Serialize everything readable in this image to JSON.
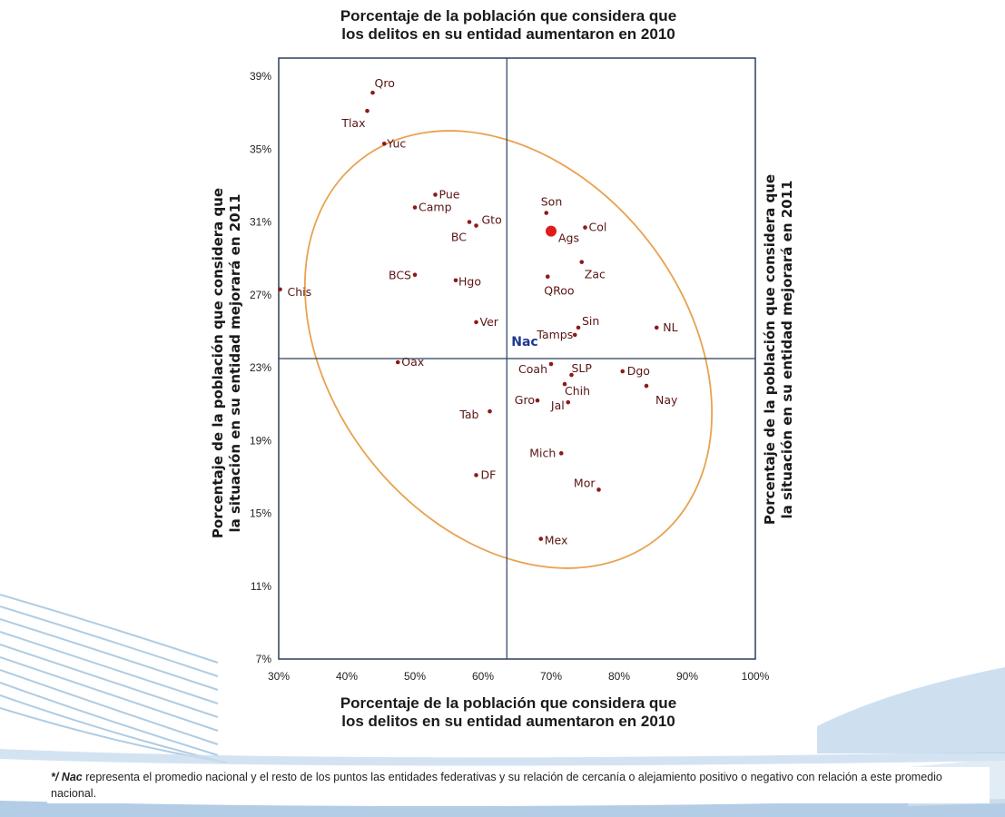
{
  "chart_data": {
    "type": "scatter",
    "title": "Porcentaje de la población que considera que los delitos en su entidad aumentaron en 2010",
    "title_lines": [
      "Porcentaje de la población que considera que",
      "los delitos en su entidad aumentaron  en 2010"
    ],
    "xlabel_lines": [
      "Porcentaje de la población que considera que",
      "los delitos en su entidad aumentaron  en 2010"
    ],
    "ylabel_lines": [
      "Porcentaje de la población que considera que",
      "la situación en su entidad mejorará en 2011"
    ],
    "xlim": [
      30,
      100
    ],
    "ylim": [
      7,
      40
    ],
    "x_ticks": [
      30,
      40,
      50,
      60,
      70,
      80,
      90,
      100
    ],
    "x_tick_labels": [
      "30%",
      "40%",
      "50%",
      "60%",
      "70%",
      "80%",
      "90%",
      "100%"
    ],
    "y_ticks": [
      7,
      11,
      15,
      19,
      23,
      27,
      31,
      35,
      39
    ],
    "y_tick_labels": [
      "7%",
      "11%",
      "15%",
      "19%",
      "23%",
      "27%",
      "31%",
      "35%",
      "39%"
    ],
    "reference_lines": {
      "x": 63.5,
      "y": 23.5
    },
    "grid": false,
    "colors": {
      "point": "#8b1a1a",
      "highlight": "#e21b1b",
      "nac": "#1f3a8f",
      "ellipse": "#e8a250",
      "axis": "#2b3f5c",
      "label": "#5a1414"
    },
    "points": [
      {
        "label": "Qro",
        "x": 43.8,
        "y": 38.1
      },
      {
        "label": "Tlax",
        "x": 43.0,
        "y": 37.1
      },
      {
        "label": "Yuc",
        "x": 45.5,
        "y": 35.3
      },
      {
        "label": "Pue",
        "x": 53.0,
        "y": 32.5
      },
      {
        "label": "Camp",
        "x": 50.0,
        "y": 31.8
      },
      {
        "label": "Gto",
        "x": 59.0,
        "y": 30.8
      },
      {
        "label": "BC",
        "x": 58.0,
        "y": 31.0
      },
      {
        "label": "Son",
        "x": 69.3,
        "y": 31.5
      },
      {
        "label": "Ags",
        "x": 70.0,
        "y": 30.5,
        "highlight": true
      },
      {
        "label": "Col",
        "x": 75.0,
        "y": 30.7
      },
      {
        "label": "Zac",
        "x": 74.5,
        "y": 28.8
      },
      {
        "label": "BCS",
        "x": 50.0,
        "y": 28.1
      },
      {
        "label": "Hgo",
        "x": 56.0,
        "y": 27.8
      },
      {
        "label": "QRoo",
        "x": 69.5,
        "y": 28.0
      },
      {
        "label": "Chis",
        "x": 30.2,
        "y": 27.3
      },
      {
        "label": "Ver",
        "x": 59.0,
        "y": 25.5
      },
      {
        "label": "Sin",
        "x": 74.0,
        "y": 25.2
      },
      {
        "label": "NL",
        "x": 85.5,
        "y": 25.2
      },
      {
        "label": "Tamps",
        "x": 73.5,
        "y": 24.8
      },
      {
        "label": "Nac",
        "x": 63.5,
        "y": 23.5,
        "nac": true
      },
      {
        "label": "Coah",
        "x": 70.0,
        "y": 23.2
      },
      {
        "label": "Oax",
        "x": 47.5,
        "y": 23.3
      },
      {
        "label": "SLP",
        "x": 73.0,
        "y": 22.6
      },
      {
        "label": "Chih",
        "x": 72.0,
        "y": 22.1
      },
      {
        "label": "Dgo",
        "x": 80.5,
        "y": 22.8
      },
      {
        "label": "Nay",
        "x": 84.0,
        "y": 22.0
      },
      {
        "label": "Gro",
        "x": 68.0,
        "y": 21.2
      },
      {
        "label": "Jal",
        "x": 72.5,
        "y": 21.1
      },
      {
        "label": "Tab",
        "x": 61.0,
        "y": 20.6
      },
      {
        "label": "Mich",
        "x": 71.5,
        "y": 18.3
      },
      {
        "label": "DF",
        "x": 59.0,
        "y": 17.1
      },
      {
        "label": "Mor",
        "x": 77.0,
        "y": 16.3
      },
      {
        "label": "Mex",
        "x": 68.5,
        "y": 13.6
      }
    ]
  },
  "footnote": {
    "marker": "*/ Nac",
    "text": " representa el promedio nacional y el resto de los puntos las entidades federativas y su relación de cercanía o alejamiento positivo o negativo con relación a este promedio nacional."
  }
}
